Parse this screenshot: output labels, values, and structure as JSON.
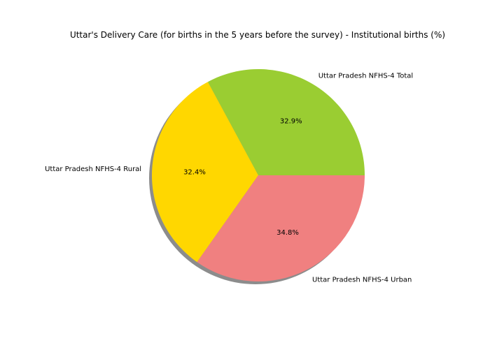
{
  "chart_data": {
    "type": "pie",
    "title": "Uttar's Delivery Care (for births in the 5 years before the survey) - Institutional births (%)",
    "categories": [
      "Uttar Pradesh NFHS-4 Total",
      "Uttar Pradesh NFHS-4 Rural",
      "Uttar Pradesh NFHS-4 Urban"
    ],
    "values": [
      32.9,
      32.4,
      34.8
    ],
    "value_labels": [
      "32.9%",
      "32.4%",
      "34.8%"
    ],
    "colors": [
      "#9acd32",
      "#ffd700",
      "#f08080"
    ],
    "shadow": true,
    "start_angle_deg": 0,
    "direction": "counterclockwise"
  }
}
